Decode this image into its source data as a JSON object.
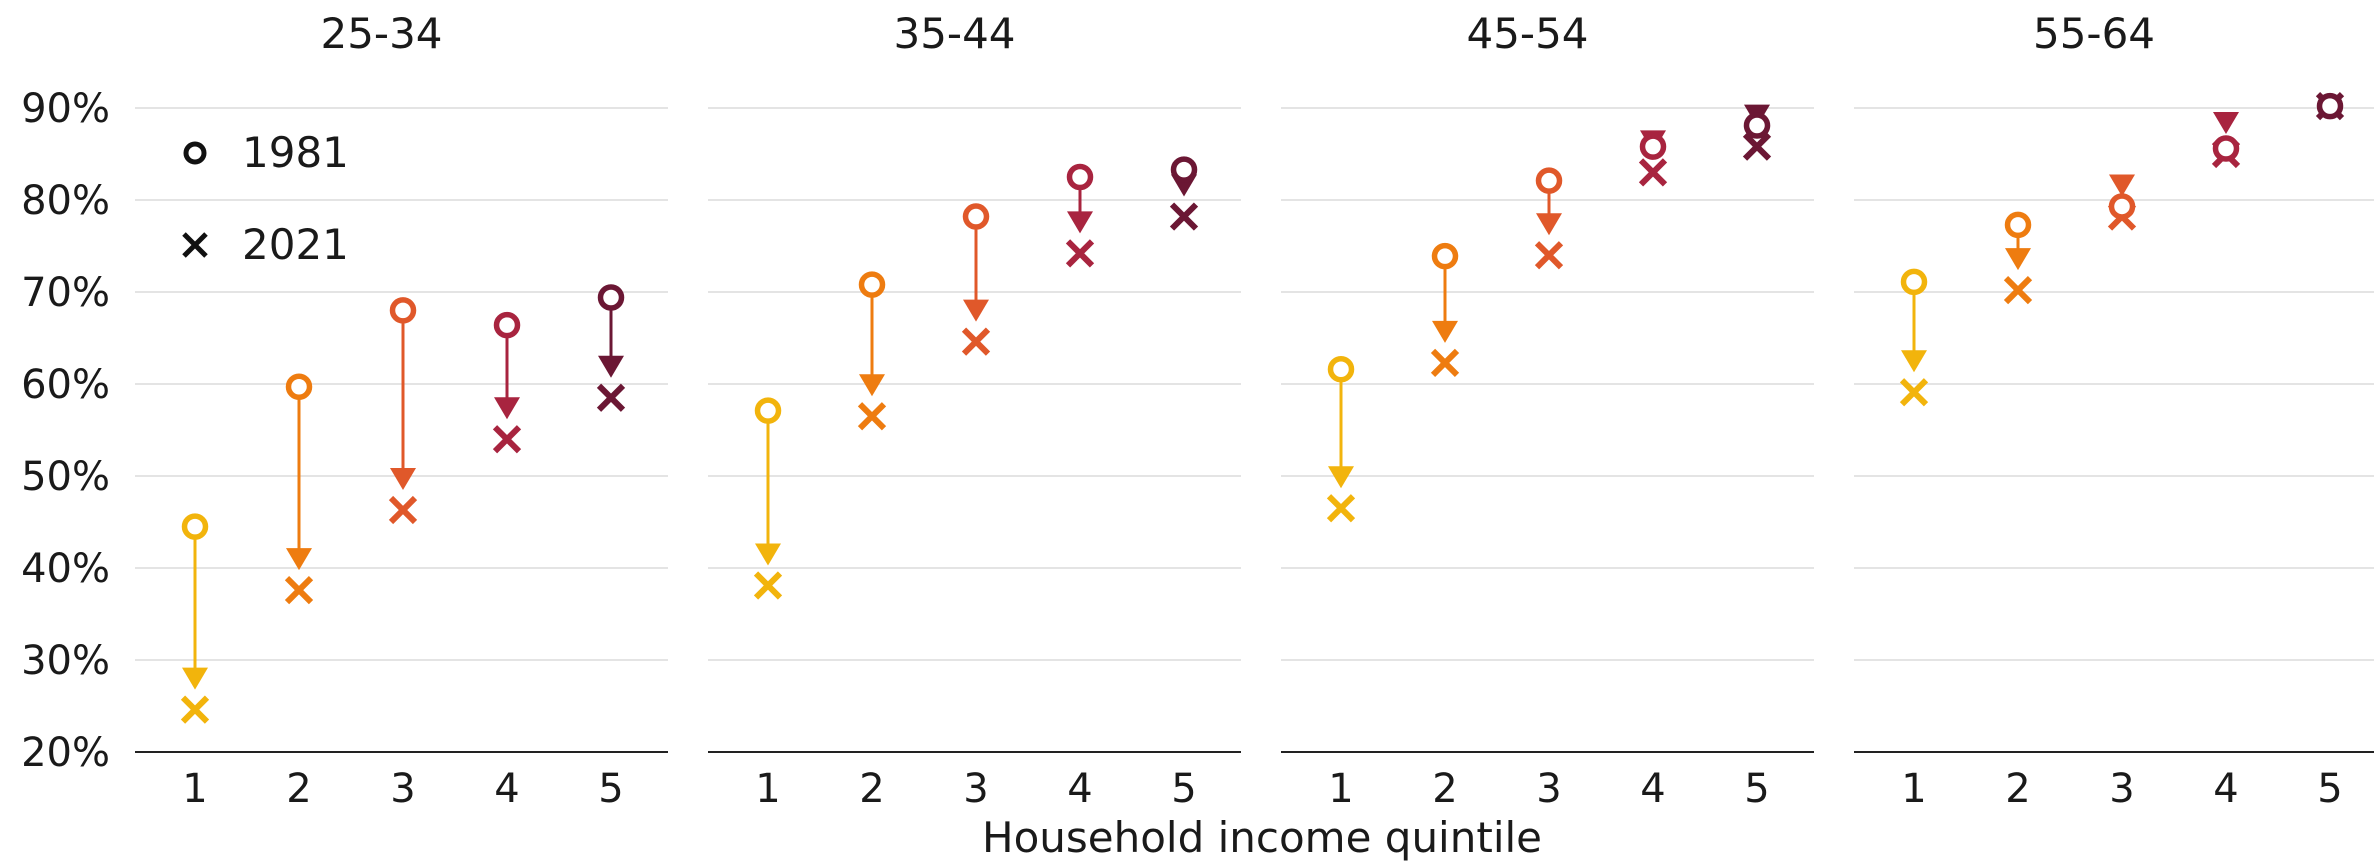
{
  "chart_data": {
    "type": "scatter",
    "xlabel": "Household income quintile",
    "ylabel": "",
    "ylim": [
      20,
      90
    ],
    "y_ticks": [
      "20%",
      "30%",
      "40%",
      "50%",
      "60%",
      "70%",
      "80%",
      "90%"
    ],
    "y_tick_values": [
      20,
      30,
      40,
      50,
      60,
      70,
      80,
      90
    ],
    "categories": [
      "1",
      "2",
      "3",
      "4",
      "5"
    ],
    "legend": {
      "placement": "top-left",
      "entries": [
        {
          "label": "1981",
          "marker": "circle"
        },
        {
          "label": "2021",
          "marker": "cross"
        }
      ]
    },
    "quintile_colors": [
      "#F2B40C",
      "#EE7C10",
      "#E0582A",
      "#A8243F",
      "#6B1734"
    ],
    "grid": true,
    "panels": [
      {
        "title": "25-34",
        "series": [
          {
            "name": "1981",
            "values": [
              44.5,
              59.7,
              68.0,
              66.4,
              69.4
            ]
          },
          {
            "name": "2021",
            "values": [
              24.6,
              37.6,
              46.3,
              54.0,
              58.5
            ]
          }
        ]
      },
      {
        "title": "35-44",
        "series": [
          {
            "name": "1981",
            "values": [
              57.1,
              70.8,
              78.2,
              82.5,
              83.3
            ]
          },
          {
            "name": "2021",
            "values": [
              38.1,
              56.5,
              64.6,
              74.2,
              78.2
            ]
          }
        ]
      },
      {
        "title": "45-54",
        "series": [
          {
            "name": "1981",
            "values": [
              61.6,
              73.9,
              82.1,
              85.8,
              88.1
            ]
          },
          {
            "name": "2021",
            "values": [
              46.5,
              62.3,
              74.0,
              83.0,
              85.8
            ]
          }
        ]
      },
      {
        "title": "55-64",
        "series": [
          {
            "name": "1981",
            "values": [
              71.1,
              77.3,
              79.3,
              85.6,
              90.2
            ]
          },
          {
            "name": "2021",
            "values": [
              59.1,
              70.2,
              78.2,
              85.0,
              90.2
            ]
          }
        ]
      }
    ]
  }
}
